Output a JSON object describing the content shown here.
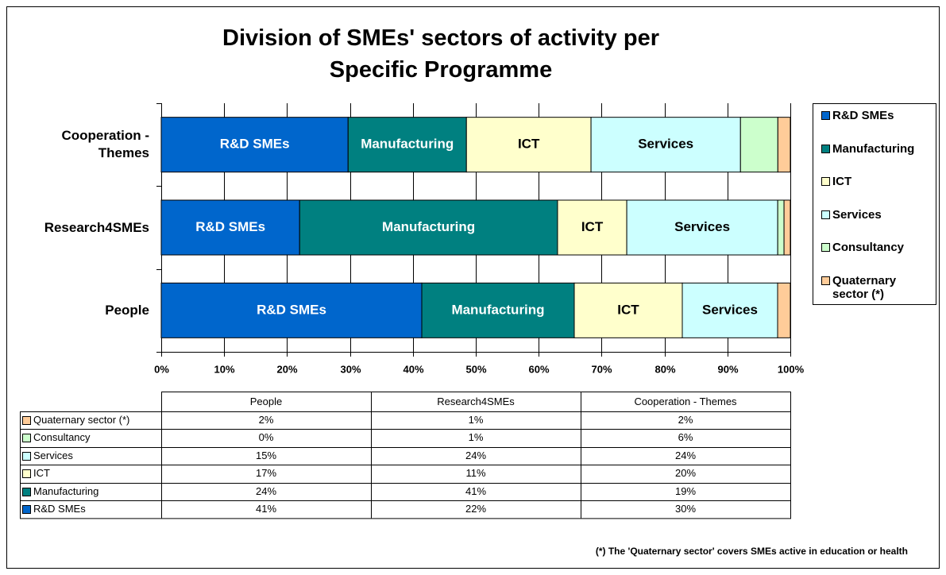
{
  "chart_data": {
    "type": "bar",
    "orientation": "horizontal",
    "stacked": "percent",
    "title": "Division of SMEs' sectors of activity per Specific Programme",
    "categories": [
      "Cooperation - Themes",
      "Research4SMEs",
      "People"
    ],
    "series": [
      {
        "name": "R&D SMEs",
        "color": "#0066cc",
        "values": [
          30,
          22,
          41
        ],
        "value_labels": [
          "30%",
          "22%",
          "41%"
        ]
      },
      {
        "name": "Manufacturing",
        "color": "#008080",
        "values": [
          19,
          41,
          24
        ],
        "value_labels": [
          "19%",
          "41%",
          "24%"
        ]
      },
      {
        "name": "ICT",
        "color": "#ffffcc",
        "values": [
          20,
          11,
          17
        ],
        "value_labels": [
          "20%",
          "11%",
          "17%"
        ]
      },
      {
        "name": "Services",
        "color": "#ccffff",
        "values": [
          24,
          24,
          15
        ],
        "value_labels": [
          "24%",
          "24%",
          "15%"
        ]
      },
      {
        "name": "Consultancy",
        "color": "#ccffcc",
        "values": [
          6,
          1,
          0
        ],
        "value_labels": [
          "6%",
          "1%",
          "0%"
        ]
      },
      {
        "name": "Quaternary sector (*)",
        "color": "#ffcc99",
        "values": [
          2,
          1,
          2
        ],
        "value_labels": [
          "2%",
          "1%",
          "2%"
        ]
      }
    ],
    "xlim": [
      0,
      100
    ],
    "xticks": [
      {
        "value": 0,
        "label": "0%"
      },
      {
        "value": 10,
        "label": "10%"
      },
      {
        "value": 20,
        "label": "20%"
      },
      {
        "value": 30,
        "label": "30%"
      },
      {
        "value": 40,
        "label": "40%"
      },
      {
        "value": 50,
        "label": "50%"
      },
      {
        "value": 60,
        "label": "60%"
      },
      {
        "value": 70,
        "label": "70%"
      },
      {
        "value": 80,
        "label": "80%"
      },
      {
        "value": 90,
        "label": "90%"
      },
      {
        "value": 100,
        "label": "100%"
      }
    ],
    "grid": true,
    "legend": "right",
    "data_table": true,
    "footnote": "(*) The 'Quaternary sector' covers SMEs active in education or health"
  }
}
